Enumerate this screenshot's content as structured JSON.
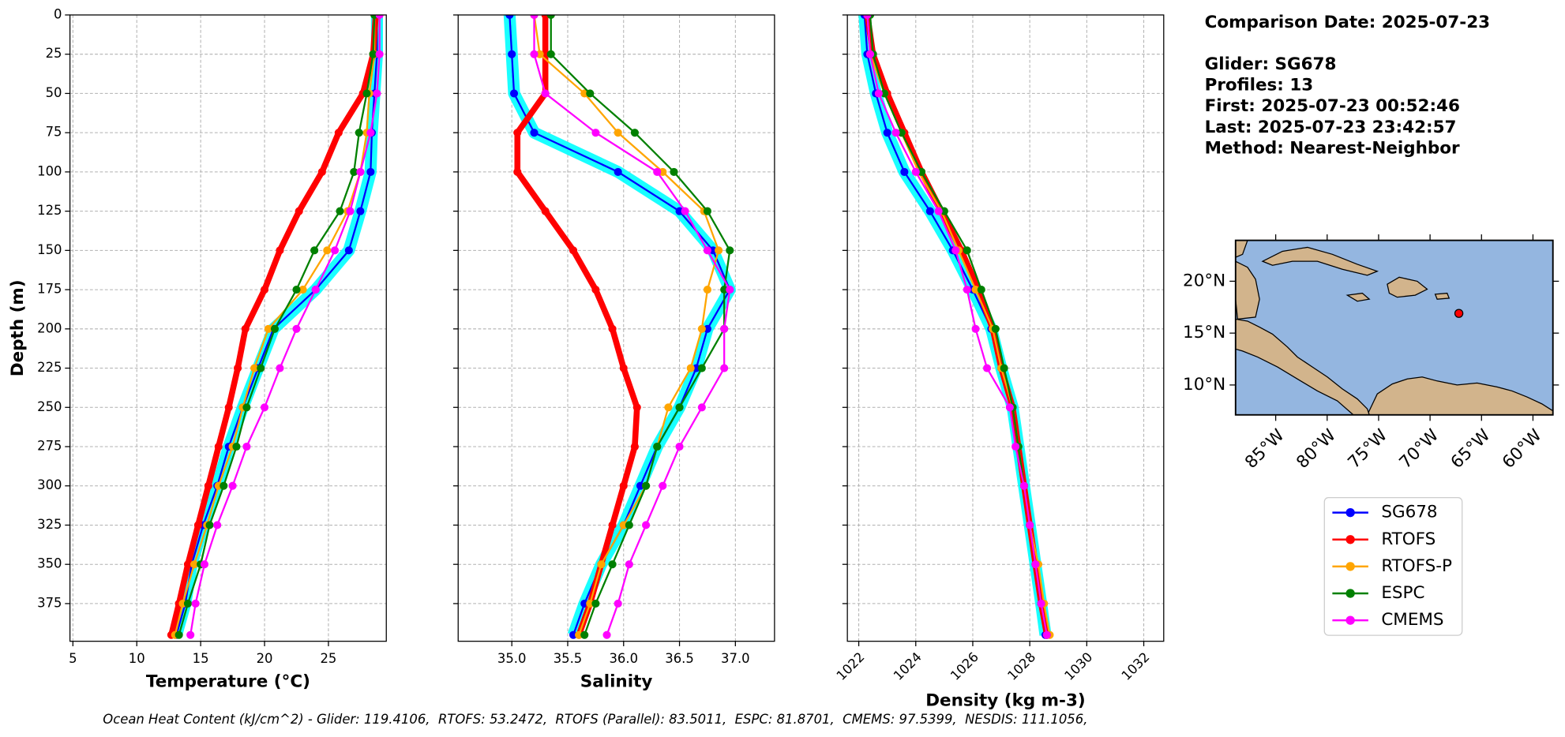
{
  "chart_data": [
    {
      "type": "line",
      "yinvert": true,
      "show_ytick_labels": true,
      "xtick_rotation": 0,
      "grid": true,
      "xlabel": "Temperature (°C)",
      "ylabel": "Depth (m)",
      "xlim": [
        4.77,
        29.53
      ],
      "ylim": [
        0,
        399
      ],
      "xticks": [
        5,
        10,
        15,
        20,
        25
      ],
      "yticks": [
        0,
        25,
        50,
        75,
        100,
        125,
        150,
        175,
        200,
        225,
        250,
        275,
        300,
        325,
        350,
        375
      ],
      "y": [
        0,
        25,
        50,
        75,
        100,
        125,
        150,
        175,
        200,
        225,
        250,
        275,
        300,
        325,
        350,
        375,
        395
      ],
      "series": [
        {
          "name": "SG678",
          "color": "#0000ff",
          "cloud_color": "#00ffff",
          "linewidth": 1.8,
          "values": [
            28.8,
            28.8,
            28.6,
            28.4,
            28.3,
            27.5,
            26.6,
            24.0,
            20.7,
            19.5,
            18.3,
            17.2,
            16.3,
            15.2,
            14.3,
            13.8,
            13.1
          ]
        },
        {
          "name": "RTOFS",
          "color": "#ff0000",
          "linewidth": 6,
          "values": [
            28.7,
            28.5,
            27.7,
            25.8,
            24.5,
            22.7,
            21.2,
            20.0,
            18.5,
            17.9,
            17.2,
            16.4,
            15.6,
            14.8,
            14.0,
            13.3,
            12.7
          ]
        },
        {
          "name": "RTOFS-P",
          "color": "#ffa500",
          "linewidth": 1.8,
          "values": [
            28.6,
            28.6,
            28.2,
            28.0,
            27.5,
            26.5,
            24.9,
            23.0,
            20.3,
            19.2,
            18.3,
            17.5,
            16.4,
            15.5,
            14.5,
            13.6,
            13.0
          ]
        },
        {
          "name": "ESPC",
          "color": "#008000",
          "linewidth": 1.8,
          "values": [
            28.6,
            28.5,
            28.0,
            27.4,
            27.0,
            25.9,
            23.9,
            22.5,
            20.8,
            19.7,
            18.6,
            17.8,
            16.8,
            15.7,
            15.0,
            14.0,
            13.3
          ]
        },
        {
          "name": "CMEMS",
          "color": "#ff00ff",
          "linewidth": 1.8,
          "values": [
            29.0,
            29.0,
            28.8,
            28.3,
            27.5,
            26.7,
            25.5,
            24.0,
            22.5,
            21.2,
            20.0,
            18.6,
            17.5,
            16.3,
            15.3,
            14.6,
            14.2
          ]
        }
      ]
    },
    {
      "type": "line",
      "yinvert": true,
      "show_ytick_labels": false,
      "xtick_rotation": 0,
      "grid": true,
      "xlabel": "Salinity",
      "xlim": [
        34.52,
        37.35
      ],
      "ylim": [
        0,
        399
      ],
      "xticks": [
        {
          "value": 35,
          "label": "35.0"
        },
        35.5,
        {
          "value": 36,
          "label": "36.0"
        },
        36.5,
        {
          "value": 37,
          "label": "37.0"
        }
      ],
      "yticks": [
        0,
        25,
        50,
        75,
        100,
        125,
        150,
        175,
        200,
        225,
        250,
        275,
        300,
        325,
        350,
        375
      ],
      "y": [
        0,
        25,
        50,
        75,
        100,
        125,
        150,
        175,
        200,
        225,
        250,
        275,
        300,
        325,
        350,
        375,
        395
      ],
      "series": [
        {
          "name": "SG678",
          "color": "#0000ff",
          "cloud_color": "#00ffff",
          "linewidth": 1.8,
          "values": [
            34.98,
            35.0,
            35.02,
            35.2,
            35.95,
            36.5,
            36.8,
            36.95,
            36.75,
            36.65,
            36.5,
            36.3,
            36.15,
            36.0,
            35.8,
            35.65,
            35.55
          ]
        },
        {
          "name": "RTOFS",
          "color": "#ff0000",
          "linewidth": 6,
          "values": [
            35.3,
            35.3,
            35.3,
            35.05,
            35.05,
            35.3,
            35.55,
            35.75,
            35.9,
            36.0,
            36.12,
            36.1,
            36.0,
            35.9,
            35.8,
            35.7,
            35.6
          ]
        },
        {
          "name": "RTOFS-P",
          "color": "#ffa500",
          "linewidth": 1.8,
          "values": [
            35.2,
            35.25,
            35.65,
            35.95,
            36.35,
            36.72,
            36.85,
            36.75,
            36.7,
            36.6,
            36.4,
            36.3,
            36.2,
            36.0,
            35.8,
            35.7,
            35.6
          ]
        },
        {
          "name": "ESPC",
          "color": "#008000",
          "linewidth": 1.8,
          "values": [
            35.35,
            35.35,
            35.7,
            36.1,
            36.45,
            36.75,
            36.95,
            36.9,
            36.9,
            36.7,
            36.5,
            36.3,
            36.2,
            36.05,
            35.9,
            35.75,
            35.65
          ]
        },
        {
          "name": "CMEMS",
          "color": "#ff00ff",
          "linewidth": 1.8,
          "values": [
            35.2,
            35.2,
            35.3,
            35.75,
            36.3,
            36.55,
            36.75,
            36.95,
            36.9,
            36.9,
            36.7,
            36.5,
            36.35,
            36.2,
            36.05,
            35.95,
            35.85
          ]
        }
      ]
    },
    {
      "type": "line",
      "yinvert": true,
      "show_ytick_labels": false,
      "xtick_rotation": 45,
      "grid": true,
      "xlabel": "Density (kg m-3)",
      "xlim": [
        1021.6,
        1032.7
      ],
      "ylim": [
        0,
        399
      ],
      "xticks": [
        1022,
        1024,
        1026,
        1028,
        1030,
        1032
      ],
      "yticks": [
        0,
        25,
        50,
        75,
        100,
        125,
        150,
        175,
        200,
        225,
        250,
        275,
        300,
        325,
        350,
        375
      ],
      "y": [
        0,
        25,
        50,
        75,
        100,
        125,
        150,
        175,
        200,
        225,
        250,
        275,
        300,
        325,
        350,
        375,
        395
      ],
      "series": [
        {
          "name": "SG678",
          "color": "#0000ff",
          "cloud_color": "#00ffff",
          "linewidth": 1.8,
          "values": [
            1022.2,
            1022.3,
            1022.6,
            1023.0,
            1023.6,
            1024.5,
            1025.3,
            1026.0,
            1026.65,
            1027.0,
            1027.4,
            1027.6,
            1027.8,
            1028.0,
            1028.2,
            1028.4,
            1028.55
          ]
        },
        {
          "name": "RTOFS",
          "color": "#ff0000",
          "linewidth": 6,
          "values": [
            1022.3,
            1022.5,
            1023.0,
            1023.6,
            1024.2,
            1024.9,
            1025.6,
            1026.2,
            1026.7,
            1027.0,
            1027.4,
            1027.6,
            1027.8,
            1028.0,
            1028.2,
            1028.4,
            1028.6
          ]
        },
        {
          "name": "RTOFS-P",
          "color": "#ffa500",
          "linewidth": 1.8,
          "values": [
            1022.3,
            1022.4,
            1022.9,
            1023.5,
            1024.1,
            1024.9,
            1025.5,
            1026.1,
            1026.7,
            1027.0,
            1027.4,
            1027.6,
            1027.8,
            1028.0,
            1028.3,
            1028.5,
            1028.7
          ]
        },
        {
          "name": "ESPC",
          "color": "#008000",
          "linewidth": 1.8,
          "values": [
            1022.4,
            1022.5,
            1022.9,
            1023.5,
            1024.2,
            1025.0,
            1025.8,
            1026.3,
            1026.8,
            1027.1,
            1027.4,
            1027.6,
            1027.8,
            1028.0,
            1028.2,
            1028.4,
            1028.6
          ]
        },
        {
          "name": "CMEMS",
          "color": "#ff00ff",
          "linewidth": 1.8,
          "values": [
            1022.3,
            1022.4,
            1022.7,
            1023.3,
            1024.0,
            1024.8,
            1025.4,
            1025.8,
            1026.1,
            1026.5,
            1027.3,
            1027.5,
            1027.8,
            1028.0,
            1028.2,
            1028.4,
            1028.6
          ]
        }
      ]
    },
    {
      "type": "map",
      "xlim": [
        -88.9,
        -58.06
      ],
      "ylim": [
        7.12,
        23.94
      ],
      "xticks": [
        {
          "value": -85,
          "label": "85°W"
        },
        {
          "value": -80,
          "label": "80°W"
        },
        {
          "value": -75,
          "label": "75°W"
        },
        {
          "value": -70,
          "label": "70°W"
        },
        {
          "value": -65,
          "label": "65°W"
        },
        {
          "value": -60,
          "label": "60°W"
        }
      ],
      "yticks": [
        {
          "value": 10,
          "label": "10°N"
        },
        {
          "value": 15,
          "label": "15°N"
        },
        {
          "value": 20,
          "label": "20°N"
        }
      ],
      "marker": [
        -67.2,
        16.9
      ],
      "marker_color": "#ff0000",
      "ocean_color": "#94b6e0",
      "land_color": "#d2b48c"
    }
  ],
  "info": [
    "Comparison Date: 2025-07-23",
    "Glider: SG678",
    "Profiles: 13",
    "First: 2025-07-23 00:52:46",
    "Last: 2025-07-23 23:42:57",
    "Method: Nearest-Neighbor"
  ],
  "footer": "Ocean Heat Content (kJ/cm^2) - Glider: 119.4106,  RTOFS: 53.2472,  RTOFS (Parallel): 83.5011,  ESPC: 81.8701,  CMEMS: 97.5399,  NESDIS: 111.1056,"
}
